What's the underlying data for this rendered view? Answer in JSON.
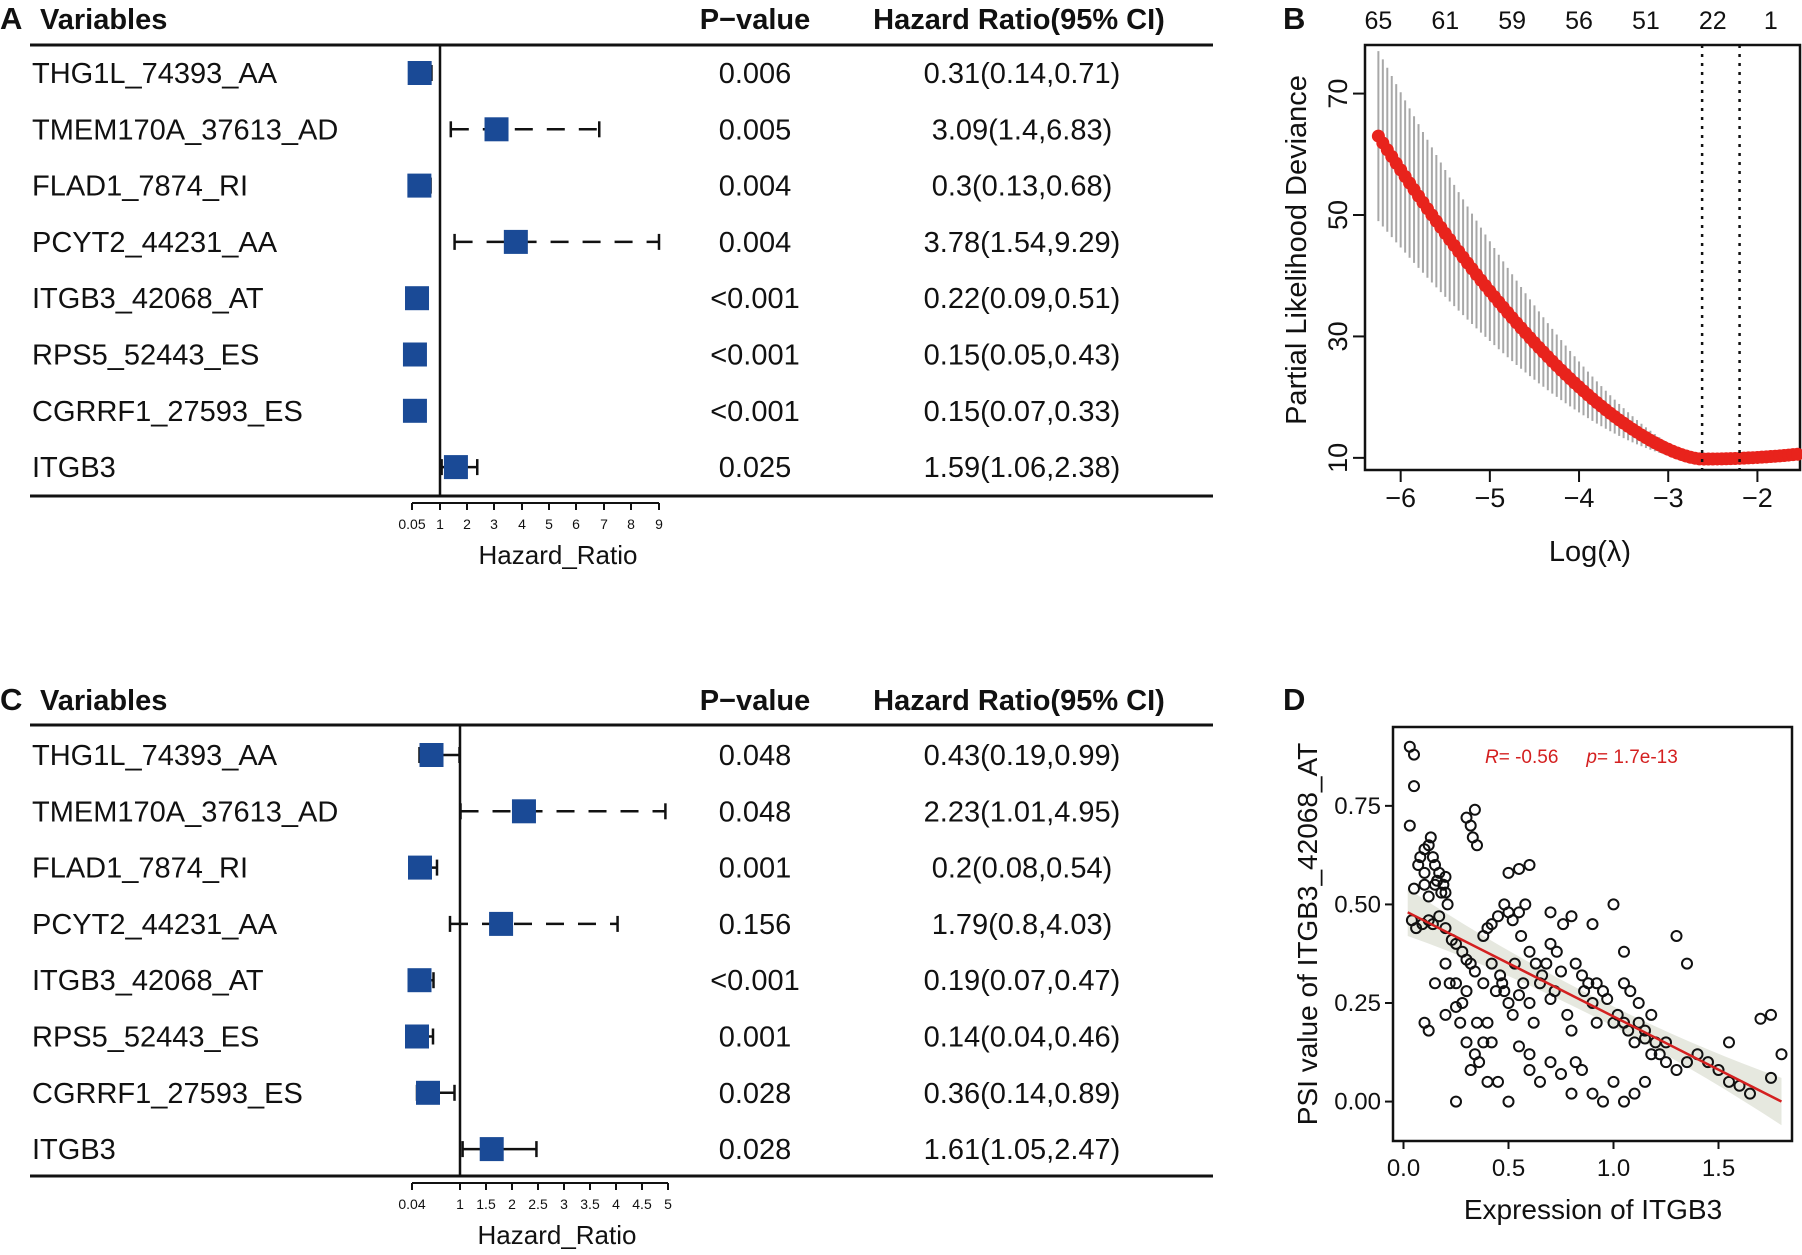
{
  "chart_data": [
    {
      "panel": "A",
      "type": "forest",
      "header": {
        "variables": "Variables",
        "pvalue": "P−value",
        "hr": "Hazard Ratio(95% CI)"
      },
      "xlabel": "Hazard_Ratio",
      "ticks": [
        {
          "label": "0.05",
          "value": 0.05
        },
        {
          "label": "1",
          "value": 1
        },
        {
          "label": "2",
          "value": 2
        },
        {
          "label": "3",
          "value": 3
        },
        {
          "label": "4",
          "value": 4
        },
        {
          "label": "5",
          "value": 5
        },
        {
          "label": "6",
          "value": 6
        },
        {
          "label": "7",
          "value": 7
        },
        {
          "label": "8",
          "value": 8
        },
        {
          "label": "9",
          "value": 9
        }
      ],
      "rows": [
        {
          "name": "THG1L_74393_AA",
          "p": "0.006",
          "ci_text": "0.31(0.14,0.71)",
          "hr": 0.31,
          "lo": 0.14,
          "hi": 0.71
        },
        {
          "name": "TMEM170A_37613_AD",
          "p": "0.005",
          "ci_text": "3.09(1.4,6.83)",
          "hr": 3.09,
          "lo": 1.4,
          "hi": 6.83
        },
        {
          "name": "FLAD1_7874_RI",
          "p": "0.004",
          "ci_text": "0.3(0.13,0.68)",
          "hr": 0.3,
          "lo": 0.13,
          "hi": 0.68
        },
        {
          "name": "PCYT2_44231_AA",
          "p": "0.004",
          "ci_text": "3.78(1.54,9.29)",
          "hr": 3.78,
          "lo": 1.54,
          "hi": 9.29
        },
        {
          "name": "ITGB3_42068_AT",
          "p": "<0.001",
          "ci_text": "0.22(0.09,0.51)",
          "hr": 0.22,
          "lo": 0.09,
          "hi": 0.51
        },
        {
          "name": "RPS5_52443_ES",
          "p": "<0.001",
          "ci_text": "0.15(0.05,0.43)",
          "hr": 0.15,
          "lo": 0.05,
          "hi": 0.43
        },
        {
          "name": "CGRRF1_27593_ES",
          "p": "<0.001",
          "ci_text": "0.15(0.07,0.33)",
          "hr": 0.15,
          "lo": 0.07,
          "hi": 0.33
        },
        {
          "name": "ITGB3",
          "p": "0.025",
          "ci_text": "1.59(1.06,2.38)",
          "hr": 1.59,
          "lo": 1.06,
          "hi": 2.38
        }
      ]
    },
    {
      "panel": "B",
      "type": "line",
      "title": "",
      "xlabel": "Log(λ)",
      "ylabel": "Partial Likelihood Deviance",
      "xlim": [
        -6.4,
        -1.5
      ],
      "ylim": [
        8,
        78
      ],
      "xticks": [
        -6,
        -5,
        -4,
        -3,
        -2
      ],
      "xtick_labels": [
        "−6",
        "−5",
        "−4",
        "−3",
        "−2"
      ],
      "yticks": [
        10,
        30,
        50,
        70
      ],
      "top_axis": [
        {
          "label": "65",
          "x": -6.25
        },
        {
          "label": "61",
          "x": -5.5
        },
        {
          "label": "59",
          "x": -4.75
        },
        {
          "label": "56",
          "x": -4.0
        },
        {
          "label": "51",
          "x": -3.25
        },
        {
          "label": "22",
          "x": -2.5
        },
        {
          "label": "1",
          "x": -1.85
        }
      ],
      "vlines": [
        -2.62,
        -2.2
      ],
      "curve": {
        "x_start": -6.25,
        "x_end": -1.55,
        "x_step": 0.05,
        "y_start": 63,
        "y_min": 9.8,
        "x_min": -2.62,
        "y_end": 10.6
      },
      "error_band": {
        "at_start": 14,
        "at_min": 0.3
      }
    },
    {
      "panel": "C",
      "type": "forest",
      "header": {
        "variables": "Variables",
        "pvalue": "P−value",
        "hr": "Hazard Ratio(95% CI)"
      },
      "xlabel": "Hazard_Ratio",
      "ticks": [
        {
          "label": "0.04",
          "value": 0.04
        },
        {
          "label": "1",
          "value": 1
        },
        {
          "label": "1.5",
          "value": 1.5
        },
        {
          "label": "2",
          "value": 2
        },
        {
          "label": "2.5",
          "value": 2.5
        },
        {
          "label": "3",
          "value": 3
        },
        {
          "label": "3.5",
          "value": 3.5
        },
        {
          "label": "4",
          "value": 4
        },
        {
          "label": "4.5",
          "value": 4.5
        },
        {
          "label": "5",
          "value": 5
        }
      ],
      "rows": [
        {
          "name": "THG1L_74393_AA",
          "p": "0.048",
          "ci_text": "0.43(0.19,0.99)",
          "hr": 0.43,
          "lo": 0.19,
          "hi": 0.99
        },
        {
          "name": "TMEM170A_37613_AD",
          "p": "0.048",
          "ci_text": "2.23(1.01,4.95)",
          "hr": 2.23,
          "lo": 1.01,
          "hi": 4.95
        },
        {
          "name": "FLAD1_7874_RI",
          "p": "0.001",
          "ci_text": "0.2(0.08,0.54)",
          "hr": 0.2,
          "lo": 0.08,
          "hi": 0.54
        },
        {
          "name": "PCYT2_44231_AA",
          "p": "0.156",
          "ci_text": "1.79(0.8,4.03)",
          "hr": 1.79,
          "lo": 0.8,
          "hi": 4.03
        },
        {
          "name": "ITGB3_42068_AT",
          "p": "<0.001",
          "ci_text": "0.19(0.07,0.47)",
          "hr": 0.19,
          "lo": 0.07,
          "hi": 0.47
        },
        {
          "name": "RPS5_52443_ES",
          "p": "0.001",
          "ci_text": "0.14(0.04,0.46)",
          "hr": 0.14,
          "lo": 0.04,
          "hi": 0.46
        },
        {
          "name": "CGRRF1_27593_ES",
          "p": "0.028",
          "ci_text": "0.36(0.14,0.89)",
          "hr": 0.36,
          "lo": 0.14,
          "hi": 0.89
        },
        {
          "name": "ITGB3",
          "p": "0.028",
          "ci_text": "1.61(1.05,2.47)",
          "hr": 1.61,
          "lo": 1.05,
          "hi": 2.47
        }
      ]
    },
    {
      "panel": "D",
      "type": "scatter",
      "xlabel": "Expression of ITGB3",
      "ylabel": "PSI value of ITGB3_42068_AT",
      "xlim": [
        -0.05,
        1.85
      ],
      "ylim": [
        -0.1,
        0.95
      ],
      "xticks": [
        0.0,
        0.5,
        1.0,
        1.5
      ],
      "xtick_labels": [
        "0.0",
        "0.5",
        "1.0",
        "1.5"
      ],
      "yticks": [
        0.0,
        0.25,
        0.5,
        0.75
      ],
      "ytick_labels": [
        "0.00",
        "0.25",
        "0.50",
        "0.75"
      ],
      "annotation": {
        "r_label": "R",
        "r_value": "= -0.56",
        "p_label": "p",
        "p_value": "= 1.7e-13"
      },
      "fit": {
        "x0": 0.02,
        "y0": 0.48,
        "x1": 1.8,
        "y1": 0.0
      },
      "band": {
        "half_width_ends": 0.06,
        "half_width_mid": 0.025
      },
      "points": [
        [
          0.03,
          0.9
        ],
        [
          0.05,
          0.88
        ],
        [
          0.05,
          0.8
        ],
        [
          0.03,
          0.7
        ],
        [
          0.07,
          0.6
        ],
        [
          0.08,
          0.62
        ],
        [
          0.1,
          0.64
        ],
        [
          0.1,
          0.58
        ],
        [
          0.12,
          0.65
        ],
        [
          0.13,
          0.67
        ],
        [
          0.14,
          0.62
        ],
        [
          0.15,
          0.6
        ],
        [
          0.15,
          0.55
        ],
        [
          0.16,
          0.56
        ],
        [
          0.17,
          0.58
        ],
        [
          0.18,
          0.53
        ],
        [
          0.19,
          0.55
        ],
        [
          0.2,
          0.57
        ],
        [
          0.2,
          0.53
        ],
        [
          0.21,
          0.5
        ],
        [
          0.12,
          0.52
        ],
        [
          0.1,
          0.55
        ],
        [
          0.05,
          0.54
        ],
        [
          0.04,
          0.46
        ],
        [
          0.06,
          0.44
        ],
        [
          0.09,
          0.45
        ],
        [
          0.12,
          0.46
        ],
        [
          0.14,
          0.45
        ],
        [
          0.17,
          0.47
        ],
        [
          0.2,
          0.44
        ],
        [
          0.23,
          0.41
        ],
        [
          0.25,
          0.4
        ],
        [
          0.28,
          0.38
        ],
        [
          0.3,
          0.36
        ],
        [
          0.32,
          0.35
        ],
        [
          0.34,
          0.33
        ],
        [
          0.38,
          0.42
        ],
        [
          0.4,
          0.44
        ],
        [
          0.42,
          0.45
        ],
        [
          0.45,
          0.47
        ],
        [
          0.48,
          0.5
        ],
        [
          0.5,
          0.48
        ],
        [
          0.52,
          0.46
        ],
        [
          0.55,
          0.48
        ],
        [
          0.58,
          0.5
        ],
        [
          0.3,
          0.72
        ],
        [
          0.32,
          0.7
        ],
        [
          0.34,
          0.74
        ],
        [
          0.33,
          0.67
        ],
        [
          0.35,
          0.65
        ],
        [
          0.1,
          0.2
        ],
        [
          0.12,
          0.18
        ],
        [
          0.2,
          0.22
        ],
        [
          0.22,
          0.3
        ],
        [
          0.25,
          0.3
        ],
        [
          0.27,
          0.2
        ],
        [
          0.3,
          0.15
        ],
        [
          0.32,
          0.08
        ],
        [
          0.34,
          0.12
        ],
        [
          0.36,
          0.1
        ],
        [
          0.4,
          0.2
        ],
        [
          0.42,
          0.15
        ],
        [
          0.45,
          0.05
        ],
        [
          0.47,
          0.3
        ],
        [
          0.48,
          0.28
        ],
        [
          0.5,
          0.25
        ],
        [
          0.52,
          0.22
        ],
        [
          0.55,
          0.27
        ],
        [
          0.57,
          0.3
        ],
        [
          0.6,
          0.25
        ],
        [
          0.62,
          0.2
        ],
        [
          0.65,
          0.3
        ],
        [
          0.68,
          0.35
        ],
        [
          0.7,
          0.26
        ],
        [
          0.72,
          0.28
        ],
        [
          0.75,
          0.33
        ],
        [
          0.78,
          0.22
        ],
        [
          0.8,
          0.18
        ],
        [
          0.82,
          0.1
        ],
        [
          0.85,
          0.32
        ],
        [
          0.88,
          0.3
        ],
        [
          0.9,
          0.25
        ],
        [
          0.92,
          0.2
        ],
        [
          0.95,
          0.28
        ],
        [
          1.0,
          0.2
        ],
        [
          1.02,
          0.22
        ],
        [
          1.05,
          0.2
        ],
        [
          1.07,
          0.18
        ],
        [
          1.1,
          0.15
        ],
        [
          1.12,
          0.2
        ],
        [
          1.15,
          0.18
        ],
        [
          1.18,
          0.12
        ],
        [
          1.2,
          0.15
        ],
        [
          1.22,
          0.12
        ],
        [
          1.25,
          0.1
        ],
        [
          1.3,
          0.08
        ],
        [
          1.35,
          0.1
        ],
        [
          1.4,
          0.12
        ],
        [
          1.45,
          0.1
        ],
        [
          1.5,
          0.08
        ],
        [
          1.55,
          0.05
        ],
        [
          1.6,
          0.04
        ],
        [
          1.65,
          0.02
        ],
        [
          1.7,
          0.21
        ],
        [
          1.75,
          0.22
        ],
        [
          1.8,
          0.12
        ],
        [
          1.75,
          0.06
        ],
        [
          0.5,
          0.58
        ],
        [
          0.55,
          0.59
        ],
        [
          0.6,
          0.6
        ],
        [
          0.7,
          0.48
        ],
        [
          0.8,
          0.47
        ],
        [
          0.9,
          0.45
        ],
        [
          1.0,
          0.5
        ],
        [
          1.05,
          0.38
        ],
        [
          1.3,
          0.42
        ],
        [
          1.35,
          0.35
        ],
        [
          1.55,
          0.15
        ],
        [
          0.25,
          0.0
        ],
        [
          0.5,
          0.0
        ],
        [
          0.65,
          0.05
        ],
        [
          0.8,
          0.02
        ],
        [
          0.85,
          0.08
        ],
        [
          1.0,
          0.05
        ],
        [
          1.05,
          0.0
        ],
        [
          1.1,
          0.02
        ],
        [
          0.4,
          0.05
        ],
        [
          0.6,
          0.12
        ],
        [
          0.7,
          0.1
        ],
        [
          0.75,
          0.07
        ],
        [
          0.9,
          0.02
        ],
        [
          0.95,
          0.0
        ],
        [
          1.15,
          0.05
        ],
        [
          0.15,
          0.3
        ],
        [
          0.2,
          0.35
        ],
        [
          0.28,
          0.25
        ],
        [
          0.35,
          0.2
        ],
        [
          0.38,
          0.3
        ],
        [
          0.42,
          0.35
        ],
        [
          0.44,
          0.28
        ],
        [
          0.46,
          0.32
        ],
        [
          0.53,
          0.35
        ],
        [
          0.56,
          0.42
        ],
        [
          0.6,
          0.38
        ],
        [
          0.63,
          0.35
        ],
        [
          0.66,
          0.32
        ],
        [
          0.7,
          0.4
        ],
        [
          0.73,
          0.38
        ],
        [
          0.76,
          0.45
        ],
        [
          0.82,
          0.35
        ],
        [
          0.86,
          0.28
        ],
        [
          0.92,
          0.3
        ],
        [
          0.97,
          0.26
        ],
        [
          1.05,
          0.3
        ],
        [
          1.08,
          0.28
        ],
        [
          1.12,
          0.25
        ],
        [
          1.25,
          0.15
        ],
        [
          1.15,
          0.16
        ],
        [
          1.18,
          0.22
        ],
        [
          0.6,
          0.08
        ],
        [
          0.55,
          0.14
        ],
        [
          0.38,
          0.15
        ],
        [
          0.3,
          0.28
        ],
        [
          0.25,
          0.24
        ]
      ]
    }
  ],
  "labels": {
    "a": "A",
    "b": "B",
    "c": "C",
    "d": "D"
  }
}
